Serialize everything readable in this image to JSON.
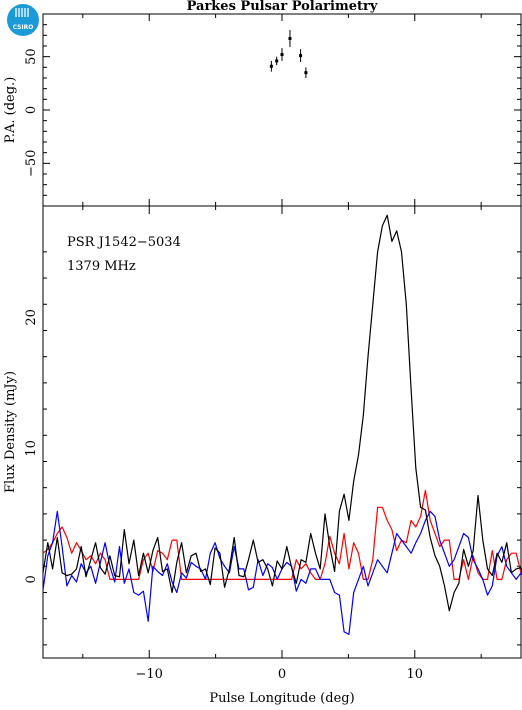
{
  "logo": {
    "text": "CSIRO",
    "color": "#1a9ad6"
  },
  "chart_data": [
    {
      "type": "scatter",
      "title": "Parkes Pulsar Polarimetry",
      "ylabel": "P.A. (deg.)",
      "xlim": [
        -18,
        18
      ],
      "ylim": [
        -90,
        90
      ],
      "yticks": [
        -50,
        0,
        50
      ],
      "points": [
        {
          "x": -0.8,
          "y": 41,
          "err": 5
        },
        {
          "x": -0.4,
          "y": 46,
          "err": 4
        },
        {
          "x": 0.0,
          "y": 52,
          "err": 6
        },
        {
          "x": 0.6,
          "y": 67,
          "err": 8
        },
        {
          "x": 1.4,
          "y": 51,
          "err": 6
        },
        {
          "x": 1.8,
          "y": 35,
          "err": 5
        }
      ]
    },
    {
      "type": "line",
      "annotation_lines": [
        "PSR J1542−5034",
        "1379 MHz"
      ],
      "xlabel": "Pulse Longitude (deg)",
      "ylabel": "Flux Density (mJy)",
      "xlim": [
        -18,
        18
      ],
      "ylim": [
        -6,
        28.5
      ],
      "xticks": [
        -10,
        0,
        10
      ],
      "yticks": [
        0,
        10,
        20
      ],
      "series": [
        {
          "key": "total",
          "color": "#000000",
          "x0": -18,
          "dx": 0.36,
          "values": [
            0.5,
            2.8,
            0.8,
            3.2,
            0.5,
            0.3,
            0.4,
            0.8,
            2.5,
            0.2,
            1.5,
            2.8,
            0.9,
            0.4,
            1.8,
            0.3,
            0.2,
            3.8,
            1.2,
            3.0,
            0.3,
            2.0,
            0.5,
            2.2,
            3.2,
            0.6,
            0.8,
            -1.0,
            1.3,
            2.8,
            0.5,
            1.8,
            2.0,
            0.6,
            0.8,
            -0.4,
            2.4,
            2.0,
            -0.6,
            0.8,
            3.2,
            0.3,
            0.2,
            1.5,
            3.0,
            1.3,
            1.5,
            0.8,
            -0.5,
            1.4,
            0.8,
            2.5,
            0.9,
            -0.3,
            1.5,
            1.3,
            3.5,
            2.0,
            0.8,
            5.0,
            2.5,
            0.6,
            5.2,
            6.5,
            4.5,
            7.5,
            9.5,
            12.5,
            17.0,
            21.0,
            25.0,
            27.0,
            27.8,
            25.8,
            26.6,
            25.0,
            21.0,
            14.5,
            8.5,
            5.5,
            5.3,
            3.2,
            1.8,
            1.0,
            -0.5,
            -2.4,
            -1.0,
            -0.3,
            2.3,
            1.0,
            2.2,
            6.4,
            3.0,
            0.8,
            0.3,
            2.0,
            1.3,
            2.8,
            0.5,
            0.8,
            0.9,
            -0.5,
            -2.5,
            -0.8,
            1.0,
            0.5,
            1.8,
            0.6,
            1.5,
            1.0,
            -0.5,
            0.8,
            2.5,
            0.4,
            2.2,
            1.3,
            3.8,
            2.2,
            0.5,
            1.0,
            -0.5,
            -1.2,
            -0.6,
            0.5,
            1.5,
            0.4,
            1.8,
            0.4,
            1.7,
            0.2,
            0.8,
            0.1
          ]
        },
        {
          "key": "linear",
          "color": "#ff0000",
          "x0": -18,
          "dx": 0.36,
          "values": [
            2.0,
            2.3,
            2.8,
            3.5,
            4.0,
            3.2,
            2.0,
            2.8,
            2.2,
            1.5,
            1.8,
            1.2,
            2.0,
            1.5,
            0.0,
            0.0,
            0.0,
            0.0,
            0.0,
            0.0,
            0.0,
            1.5,
            2.0,
            0.6,
            2.2,
            2.0,
            1.5,
            3.0,
            3.0,
            0.0,
            0.0,
            0.0,
            0.0,
            0.0,
            0.0,
            0.0,
            0.0,
            0.0,
            0.0,
            0.0,
            0.0,
            0.0,
            0.0,
            0.0,
            0.0,
            0.0,
            0.0,
            0.0,
            0.0,
            0.0,
            0.0,
            0.0,
            0.0,
            1.5,
            0.8,
            1.2,
            0.5,
            0.0,
            0.0,
            1.2,
            3.3,
            2.0,
            1.2,
            3.5,
            0.8,
            2.8,
            2.0,
            0.0,
            0.0,
            1.5,
            5.5,
            5.5,
            4.5,
            3.8,
            2.2,
            3.0,
            2.8,
            4.5,
            4.0,
            4.8,
            6.8,
            4.5,
            3.5,
            2.5,
            3.0,
            3.0,
            0.0,
            0.0,
            1.5,
            0.0,
            1.8,
            0.5,
            0.0,
            0.0,
            2.2,
            0.0,
            0.0,
            1.5,
            2.0,
            2.0,
            0.5,
            0.0,
            1.0,
            2.2,
            0.0,
            2.0,
            0.0,
            0.0,
            0.0,
            0.0,
            0.0,
            0.0,
            1.2,
            0.0,
            0.0,
            0.0,
            0.0,
            2.0,
            0.0,
            0.0,
            0.0,
            2.2,
            2.8,
            1.5,
            0.0,
            2.8,
            1.5,
            2.2,
            2.5,
            0.5,
            1.2,
            0.0
          ]
        },
        {
          "key": "circular",
          "color": "#0000ff",
          "x0": -18,
          "dx": 0.36,
          "values": [
            -0.8,
            1.8,
            2.8,
            5.2,
            2.5,
            -0.5,
            0.3,
            -0.2,
            1.2,
            0.5,
            1.0,
            -0.3,
            1.3,
            2.8,
            1.0,
            -0.2,
            2.5,
            -0.3,
            0.8,
            -1.0,
            -1.2,
            -0.9,
            -3.2,
            1.0,
            0.6,
            0.3,
            1.2,
            -0.2,
            -1.0,
            0.5,
            0.1,
            1.3,
            1.0,
            0.8,
            0.0,
            2.0,
            2.8,
            1.6,
            1.0,
            0.5,
            2.5,
            0.8,
            0.8,
            -0.8,
            -0.6,
            1.5,
            0.3,
            1.2,
            0.9,
            0.0,
            0.8,
            1.3,
            1.0,
            -0.9,
            0.0,
            -0.3,
            0.8,
            0.8,
            0.0,
            0.0,
            0.0,
            -1.0,
            -1.2,
            -4.0,
            -4.2,
            -1.0,
            0.0,
            1.0,
            -0.5,
            0.5,
            1.5,
            1.0,
            0.5,
            2.0,
            3.5,
            3.0,
            2.5,
            2.0,
            2.8,
            3.5,
            4.5,
            5.2,
            4.8,
            3.0,
            2.0,
            1.0,
            1.5,
            2.5,
            3.5,
            3.2,
            1.5,
            0.8,
            0.0,
            -1.2,
            -0.5,
            1.8,
            2.5,
            1.0,
            0.5,
            0.0,
            0.5,
            1.5,
            0.8,
            -0.5,
            0.5,
            -0.8,
            0.3,
            -0.5,
            1.0,
            2.0,
            1.2,
            0.0,
            0.8,
            -0.5,
            0.5,
            1.5,
            3.5,
            2.0,
            1.0,
            -0.2,
            1.0,
            1.8,
            -0.5,
            0.3,
            2.0,
            0.8,
            0.5,
            -1.2,
            -0.5,
            0.0,
            2.5
          ]
        }
      ]
    }
  ]
}
